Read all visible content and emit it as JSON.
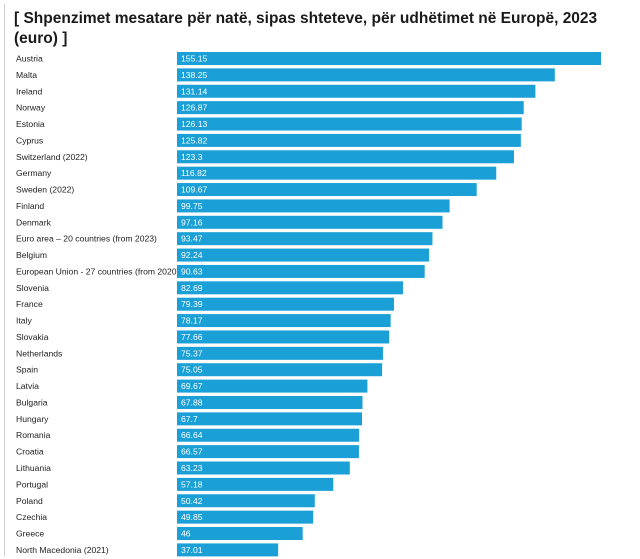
{
  "chart_data": {
    "type": "bar",
    "orientation": "horizontal",
    "title": "[ Shpenzimet mesatare për natë, sipas shteteve, për udhëtimet në Europë, 2023 (euro) ]",
    "bar_color": "#1aa0d6",
    "xlim": [
      0,
      155.15
    ],
    "categories": [
      "Austria",
      "Malta",
      "Ireland",
      "Norway",
      "Estonia",
      "Cyprus",
      "Switzerland (2022)",
      "Germany",
      "Sweden (2022)",
      "Finland",
      "Denmark",
      "Euro area – 20 countries (from 2023)",
      "Belgium",
      "European Union - 27 countries (from 2020)",
      "Slovenia",
      "France",
      "Italy",
      "Slovakia",
      "Netherlands",
      "Spain",
      "Latvia",
      "Bulgaria",
      "Hungary",
      "Romania",
      "Croatia",
      "Lithuania",
      "Portugal",
      "Poland",
      "Czechia",
      "Greece",
      "North Macedonia (2021)"
    ],
    "values": [
      155.15,
      138.25,
      131.14,
      126.87,
      126.13,
      125.82,
      123.3,
      116.82,
      109.67,
      99.75,
      97.16,
      93.47,
      92.24,
      90.63,
      82.69,
      79.39,
      78.17,
      77.66,
      75.37,
      75.05,
      69.67,
      67.88,
      67.7,
      66.64,
      66.57,
      63.23,
      57.18,
      50.42,
      49.85,
      46,
      37.01
    ],
    "value_labels": [
      "155.15",
      "138.25",
      "131.14",
      "126.87",
      "126.13",
      "125.82",
      "123.3",
      "116.82",
      "109.67",
      "99.75",
      "97.16",
      "93.47",
      "92.24",
      "90.63",
      "82.69",
      "79.39",
      "78.17",
      "77.66",
      "75.37",
      "75.05",
      "69.67",
      "67.88",
      "67.7",
      "66.64",
      "66.57",
      "63.23",
      "57.18",
      "50.42",
      "49.85",
      "46",
      "37.01"
    ]
  }
}
